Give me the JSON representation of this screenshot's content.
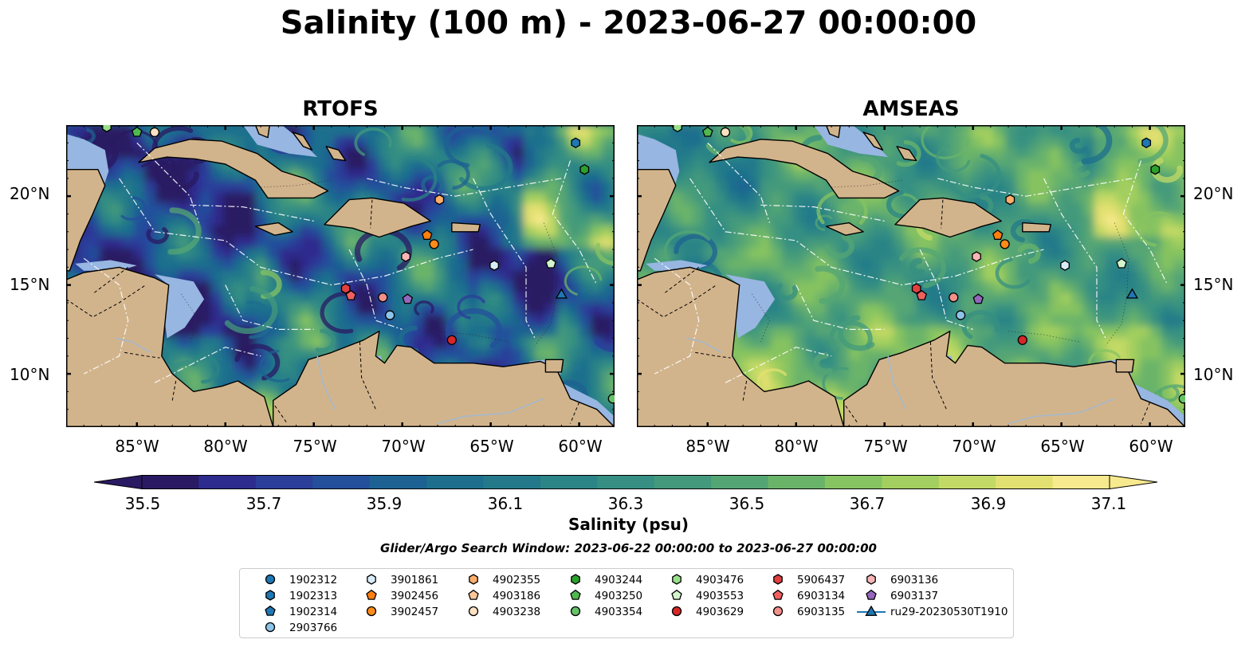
{
  "figure": {
    "title": "Salinity (100 m) - 2023-06-27 00:00:00",
    "search_window": "Glider/Argo Search Window: 2023-06-22 00:00:00 to 2023-06-27 00:00:00"
  },
  "panels": [
    {
      "title": "RTOFS"
    },
    {
      "title": "AMSEAS"
    }
  ],
  "axes": {
    "lat_ticks": [
      "20°N",
      "15°N",
      "10°N"
    ],
    "lon_ticks": [
      "85°W",
      "80°W",
      "75°W",
      "70°W",
      "65°W",
      "60°W"
    ],
    "lon_range": [
      -89,
      -58
    ],
    "lat_range": [
      7,
      24
    ]
  },
  "colorbar": {
    "label": "Salinity (psu)",
    "ticks": [
      "35.5",
      "35.7",
      "35.9",
      "36.1",
      "36.3",
      "36.5",
      "36.7",
      "36.9",
      "37.1"
    ],
    "min": 35.4,
    "max": 37.2,
    "extend": "both",
    "colors": [
      "#2a1a63",
      "#2d2c8e",
      "#2b3e9a",
      "#244f9b",
      "#1d6292",
      "#1d6f8d",
      "#23798a",
      "#2b8486",
      "#368f82",
      "#43997c",
      "#54a574",
      "#6ab46a",
      "#86c361",
      "#a2cf5f",
      "#c2d965",
      "#e2e070",
      "#f7e98d"
    ]
  },
  "colors": {
    "land": "#d2b48c",
    "shelf": "#97b6e1"
  },
  "legend": {
    "items": [
      {
        "label": "1902312",
        "marker": "circle",
        "color": "#1f77b4"
      },
      {
        "label": "1902313",
        "marker": "hexagon",
        "color": "#1f77b4"
      },
      {
        "label": "1902314",
        "marker": "pentagon",
        "color": "#1f77b4"
      },
      {
        "label": "2903766",
        "marker": "circle",
        "color": "#8ec4e8"
      },
      {
        "label": "3901861",
        "marker": "hexagon",
        "color": "#d8ecf8"
      },
      {
        "label": "3902456",
        "marker": "pentagon",
        "color": "#ff7f0e"
      },
      {
        "label": "3902457",
        "marker": "circle",
        "color": "#ff8c1a"
      },
      {
        "label": "4902355",
        "marker": "hexagon",
        "color": "#fdae6b"
      },
      {
        "label": "4903186",
        "marker": "pentagon",
        "color": "#fdc79a"
      },
      {
        "label": "4903238",
        "marker": "circle",
        "color": "#fde1c3"
      },
      {
        "label": "4903244",
        "marker": "hexagon",
        "color": "#2ca02c"
      },
      {
        "label": "4903250",
        "marker": "pentagon",
        "color": "#4fb84f"
      },
      {
        "label": "4903354",
        "marker": "circle",
        "color": "#66c266"
      },
      {
        "label": "4903476",
        "marker": "hexagon",
        "color": "#98df8a"
      },
      {
        "label": "4903553",
        "marker": "pentagon",
        "color": "#d4f5cc"
      },
      {
        "label": "4903629",
        "marker": "circle",
        "color": "#d62728"
      },
      {
        "label": "5906437",
        "marker": "hexagon",
        "color": "#e04040"
      },
      {
        "label": "6903134",
        "marker": "pentagon",
        "color": "#f06060"
      },
      {
        "label": "6903135",
        "marker": "circle",
        "color": "#f4908a"
      },
      {
        "label": "6903136",
        "marker": "hexagon",
        "color": "#f9b5b5"
      },
      {
        "label": "6903137",
        "marker": "pentagon",
        "color": "#9467bd"
      },
      {
        "label": "ru29-20230530T1910",
        "marker": "triangle-line",
        "color": "#1f77b4"
      }
    ]
  },
  "floats": [
    {
      "id": "1902313",
      "lon": -60.2,
      "lat": 23.0,
      "marker": "hexagon",
      "color": "#1f77b4"
    },
    {
      "id": "4903244",
      "lon": -59.7,
      "lat": 21.5,
      "marker": "hexagon",
      "color": "#2ca02c"
    },
    {
      "id": "4903250",
      "lon": -85.0,
      "lat": 23.6,
      "marker": "pentagon",
      "color": "#4fb84f"
    },
    {
      "id": "4903238",
      "lon": -84.0,
      "lat": 23.6,
      "marker": "circle",
      "color": "#fde1c3"
    },
    {
      "id": "4903476",
      "lon": -86.7,
      "lat": 23.9,
      "marker": "hexagon",
      "color": "#98df8a"
    },
    {
      "id": "4902355",
      "lon": -67.9,
      "lat": 19.8,
      "marker": "hexagon",
      "color": "#fdae6b"
    },
    {
      "id": "3902456",
      "lon": -68.6,
      "lat": 17.8,
      "marker": "pentagon",
      "color": "#ff7f0e"
    },
    {
      "id": "3902457",
      "lon": -68.2,
      "lat": 17.3,
      "marker": "circle",
      "color": "#ff8c1a"
    },
    {
      "id": "6903136",
      "lon": -69.8,
      "lat": 16.6,
      "marker": "hexagon",
      "color": "#f9b5b5"
    },
    {
      "id": "3901861",
      "lon": -64.8,
      "lat": 16.1,
      "marker": "hexagon",
      "color": "#d8ecf8"
    },
    {
      "id": "4903553",
      "lon": -61.6,
      "lat": 16.2,
      "marker": "pentagon",
      "color": "#d4f5cc"
    },
    {
      "id": "5906437",
      "lon": -73.2,
      "lat": 14.8,
      "marker": "hexagon",
      "color": "#e04040"
    },
    {
      "id": "6903134",
      "lon": -72.9,
      "lat": 14.4,
      "marker": "pentagon",
      "color": "#f06060"
    },
    {
      "id": "6903135",
      "lon": -71.1,
      "lat": 14.3,
      "marker": "circle",
      "color": "#f4908a"
    },
    {
      "id": "6903137",
      "lon": -69.7,
      "lat": 14.2,
      "marker": "pentagon",
      "color": "#9467bd"
    },
    {
      "id": "2903766",
      "lon": -70.7,
      "lat": 13.3,
      "marker": "circle",
      "color": "#8ec4e8"
    },
    {
      "id": "ru29-20230530T1910",
      "lon": -61.0,
      "lat": 14.5,
      "marker": "triangle",
      "color": "#1f77b4"
    },
    {
      "id": "4903629",
      "lon": -67.2,
      "lat": 11.9,
      "marker": "circle",
      "color": "#d62728"
    },
    {
      "id": "4903354",
      "lon": -58.1,
      "lat": 8.6,
      "marker": "circle",
      "color": "#66c266"
    }
  ]
}
